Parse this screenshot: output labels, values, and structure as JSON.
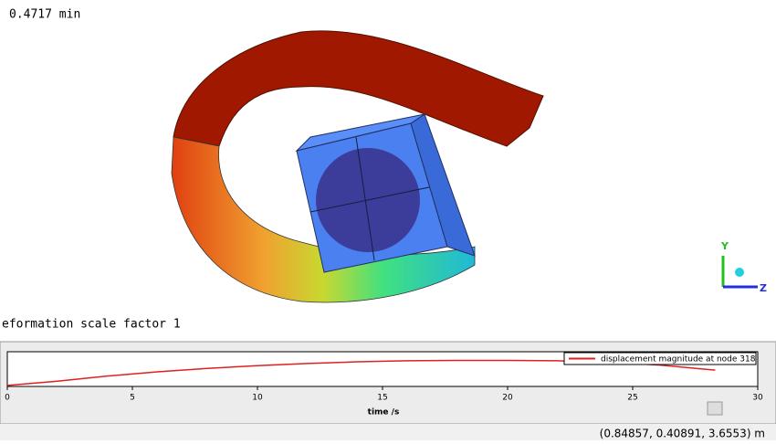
{
  "viewport": {
    "time_text": "0.4717 min",
    "deformation_text": "eformation scale factor 1",
    "triad": {
      "y": "Y",
      "z": "Z"
    }
  },
  "chart_data": {
    "type": "line",
    "x_label": "time /s",
    "x": [
      0,
      2,
      4,
      6,
      8,
      10,
      12,
      14,
      16,
      18,
      20,
      22,
      24,
      26,
      28.3
    ],
    "series": [
      {
        "name": "displacement magnitude at node 318",
        "color": "#e02020",
        "values": [
          0.03,
          0.15,
          0.3,
          0.42,
          0.52,
          0.6,
          0.66,
          0.71,
          0.74,
          0.75,
          0.75,
          0.74,
          0.7,
          0.62,
          0.47
        ]
      }
    ],
    "xlim": [
      0,
      30
    ],
    "xticks": [
      0,
      5,
      10,
      15,
      20,
      25,
      30
    ],
    "ylim": [
      0,
      1
    ]
  },
  "status": {
    "coordinates": "(0.84857, 0.40891, 3.6553) m"
  }
}
